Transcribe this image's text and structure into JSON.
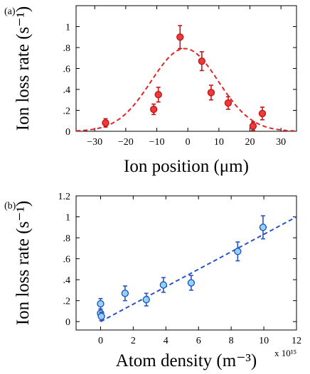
{
  "chart_data": [
    {
      "panel_label": "(a)",
      "type": "scatter",
      "xlabel": "Ion position (μm)",
      "ylabel": "Ion loss rate (s⁻¹)",
      "xlim": [
        -36,
        35
      ],
      "ylim": [
        0,
        1.2
      ],
      "xticks": [
        -30,
        -20,
        -10,
        0,
        10,
        20,
        30
      ],
      "yticks": [
        0,
        0.2,
        0.4,
        0.6,
        0.8,
        1
      ],
      "grid": false,
      "colors": {
        "marker_fill": "#ee3a3a",
        "marker_edge": "#c01818",
        "fit": "#e22424"
      },
      "series": [
        {
          "kind": "points",
          "x": [
            -26.5,
            -11,
            -9.5,
            -2.5,
            4.5,
            7.5,
            13,
            21,
            24
          ],
          "y": [
            0.08,
            0.21,
            0.35,
            0.9,
            0.67,
            0.37,
            0.27,
            0.05,
            0.17
          ],
          "err": [
            0.04,
            0.05,
            0.07,
            0.11,
            0.09,
            0.07,
            0.06,
            0.04,
            0.06
          ]
        },
        {
          "kind": "fit",
          "style": "dashed",
          "model": "gaussian",
          "amplitude": 0.79,
          "center": -1.0,
          "sigma": 10.8
        }
      ]
    },
    {
      "panel_label": "(b)",
      "type": "scatter",
      "xlabel": "Atom density (m⁻³)",
      "ylabel": "Ion loss rate (s⁻¹)",
      "x_scale_label": "x 10¹⁵",
      "xlim": [
        -1.5,
        12
      ],
      "ylim": [
        -0.08,
        1.2
      ],
      "xticks": [
        0,
        2,
        4,
        6,
        8,
        10,
        12
      ],
      "yticks": [
        0,
        0.2,
        0.4,
        0.6,
        0.8,
        1,
        1.2
      ],
      "grid": false,
      "colors": {
        "marker_fill": "#8ed6f5",
        "marker_edge": "#2a52c8",
        "fit": "#2a52c8"
      },
      "series": [
        {
          "kind": "points",
          "x": [
            0,
            0,
            0.05,
            1.5,
            2.8,
            3.85,
            5.55,
            8.4,
            9.95
          ],
          "y": [
            0.17,
            0.08,
            0.05,
            0.27,
            0.21,
            0.35,
            0.37,
            0.67,
            0.9
          ],
          "err": [
            0.05,
            0.04,
            0.04,
            0.07,
            0.06,
            0.07,
            0.07,
            0.09,
            0.11
          ]
        },
        {
          "kind": "fit",
          "style": "dashed",
          "model": "linear",
          "slope": 0.0833,
          "intercept": 0.0
        }
      ]
    }
  ]
}
